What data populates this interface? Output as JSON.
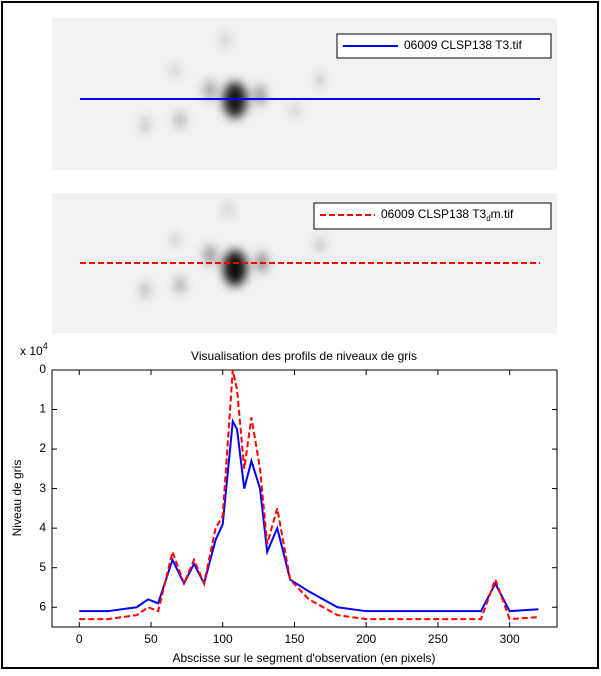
{
  "images": [
    {
      "legend": {
        "text_before": "06009 CLSP138 T3.tif",
        "subscript": "",
        "text_after": ""
      },
      "color": "#0000ff",
      "style": "solid"
    },
    {
      "legend": {
        "text_before": "06009 CLSP138 T3",
        "subscript": "d",
        "text_after": "m.tif"
      },
      "color": "#ff0000",
      "style": "dashed"
    }
  ],
  "chart_data": {
    "type": "line",
    "title": "Visualisation des profils de niveaux de gris",
    "x_label": "Abscisse sur le segment d'observation (en pixels)",
    "y_label": "Niveau de gris",
    "y_multiplier": {
      "base": "x 10",
      "exponent": "4"
    },
    "x": [
      0,
      20,
      40,
      48,
      55,
      65,
      73,
      80,
      87,
      95,
      100,
      107,
      110,
      115,
      120,
      126,
      131,
      138,
      147,
      160,
      180,
      200,
      240,
      280,
      290,
      300,
      320
    ],
    "series": [
      {
        "name": "06009 CLSP138 T3.tif",
        "color": "#0000ff",
        "dash": false,
        "values": [
          6.1,
          6.1,
          6.0,
          5.8,
          5.9,
          4.8,
          5.4,
          4.9,
          5.4,
          4.3,
          3.9,
          1.3,
          1.5,
          3.0,
          2.3,
          3.0,
          4.6,
          4.0,
          5.3,
          5.6,
          6.0,
          6.1,
          6.1,
          6.1,
          5.4,
          6.1,
          6.05
        ]
      },
      {
        "name": "06009 CLSP138 T3dm.tif",
        "color": "#ff0000",
        "dash": true,
        "values": [
          6.3,
          6.3,
          6.2,
          6.0,
          6.1,
          4.6,
          5.4,
          4.8,
          5.4,
          4.0,
          3.7,
          0,
          0.5,
          2.5,
          1.2,
          2.5,
          4.4,
          3.5,
          5.3,
          5.8,
          6.2,
          6.3,
          6.3,
          6.3,
          5.3,
          6.3,
          6.25
        ]
      }
    ],
    "xlim": [
      -19,
      333
    ],
    "xticks": [
      0,
      50,
      100,
      150,
      200,
      250,
      300
    ],
    "ylim": [
      0,
      6.5
    ],
    "yticks": [
      0,
      1,
      2,
      3,
      4,
      5,
      6
    ],
    "y_reversed": true
  }
}
